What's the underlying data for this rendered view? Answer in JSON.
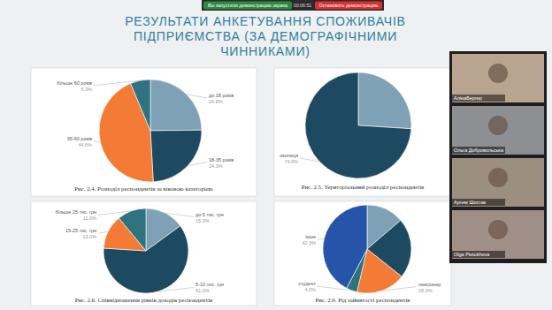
{
  "screen_share": {
    "status": "Вы запустили демонстрацию экрана",
    "timer": "00:06:51",
    "stop_button": "Остановить демонстрацию"
  },
  "slide": {
    "title": [
      "РЕЗУЛЬТАТИ АНКЕТУВАННЯ СПОЖИВАЧІВ",
      "ПІДПРИЄМСТВА (ЗА ДЕМОГРАФІЧНИМИ",
      "ЧИННИКАМИ)"
    ]
  },
  "chart_data": [
    {
      "type": "pie",
      "title": "Рис. 2.4. Розподіл респондентів за віковою категорією",
      "categories": [
        "до 18 років",
        "18-35 років",
        "35-60 років",
        "більше 60 років"
      ],
      "values": [
        24.8,
        24.3,
        44.6,
        6.3
      ],
      "value_labels": [
        "24.8%",
        "24.3%",
        "44.6%",
        "6.3%"
      ],
      "colors": [
        "#7fa1b6",
        "#1d4a60",
        "#f47b36",
        "#2e7380"
      ],
      "data_labels": true
    },
    {
      "type": "pie",
      "title": "Рис. 2.5. Територіальний розподіл респондентів",
      "categories": [
        null,
        "околиця"
      ],
      "values": [
        26.0,
        74.0
      ],
      "value_labels": [
        null,
        "74.0%"
      ],
      "colors": [
        "#7fa1b6",
        "#1d4a60"
      ],
      "data_labels": true
    },
    {
      "type": "pie",
      "title": "Рис. 2.6. Співвідношення рівнів доходів респондентів",
      "categories": [
        "до 5 тис. грн",
        "5-10 тис. грн",
        "15-25 тис. грн",
        "більше 25 тис. грн"
      ],
      "values": [
        15.0,
        61.0,
        13.0,
        11.0
      ],
      "value_labels": [
        "15.0%",
        "61.0%",
        "13.0%",
        "11.0%"
      ],
      "colors": [
        "#7fa1b6",
        "#1d4a60",
        "#f47b36",
        "#2e7380"
      ],
      "data_labels": true
    },
    {
      "type": "pie",
      "title": "Рис. 2.9. Рід зайнятості респондентів",
      "categories": [
        null,
        null,
        "пенсіонер",
        "студент",
        "інше"
      ],
      "values": [
        13.7,
        22.0,
        18.0,
        4.0,
        42.3
      ],
      "value_labels": [
        null,
        null,
        "18.0%",
        "4.0%",
        "42.3%"
      ],
      "colors": [
        "#7fa1b6",
        "#1d4a60",
        "#f47b36",
        "#2e7380",
        "#2554a8"
      ],
      "data_labels": true
    }
  ],
  "participants": [
    "АлінаБергер",
    "Ольга Добровольська",
    "Артем Шостак",
    "Olga Pietukhova"
  ]
}
